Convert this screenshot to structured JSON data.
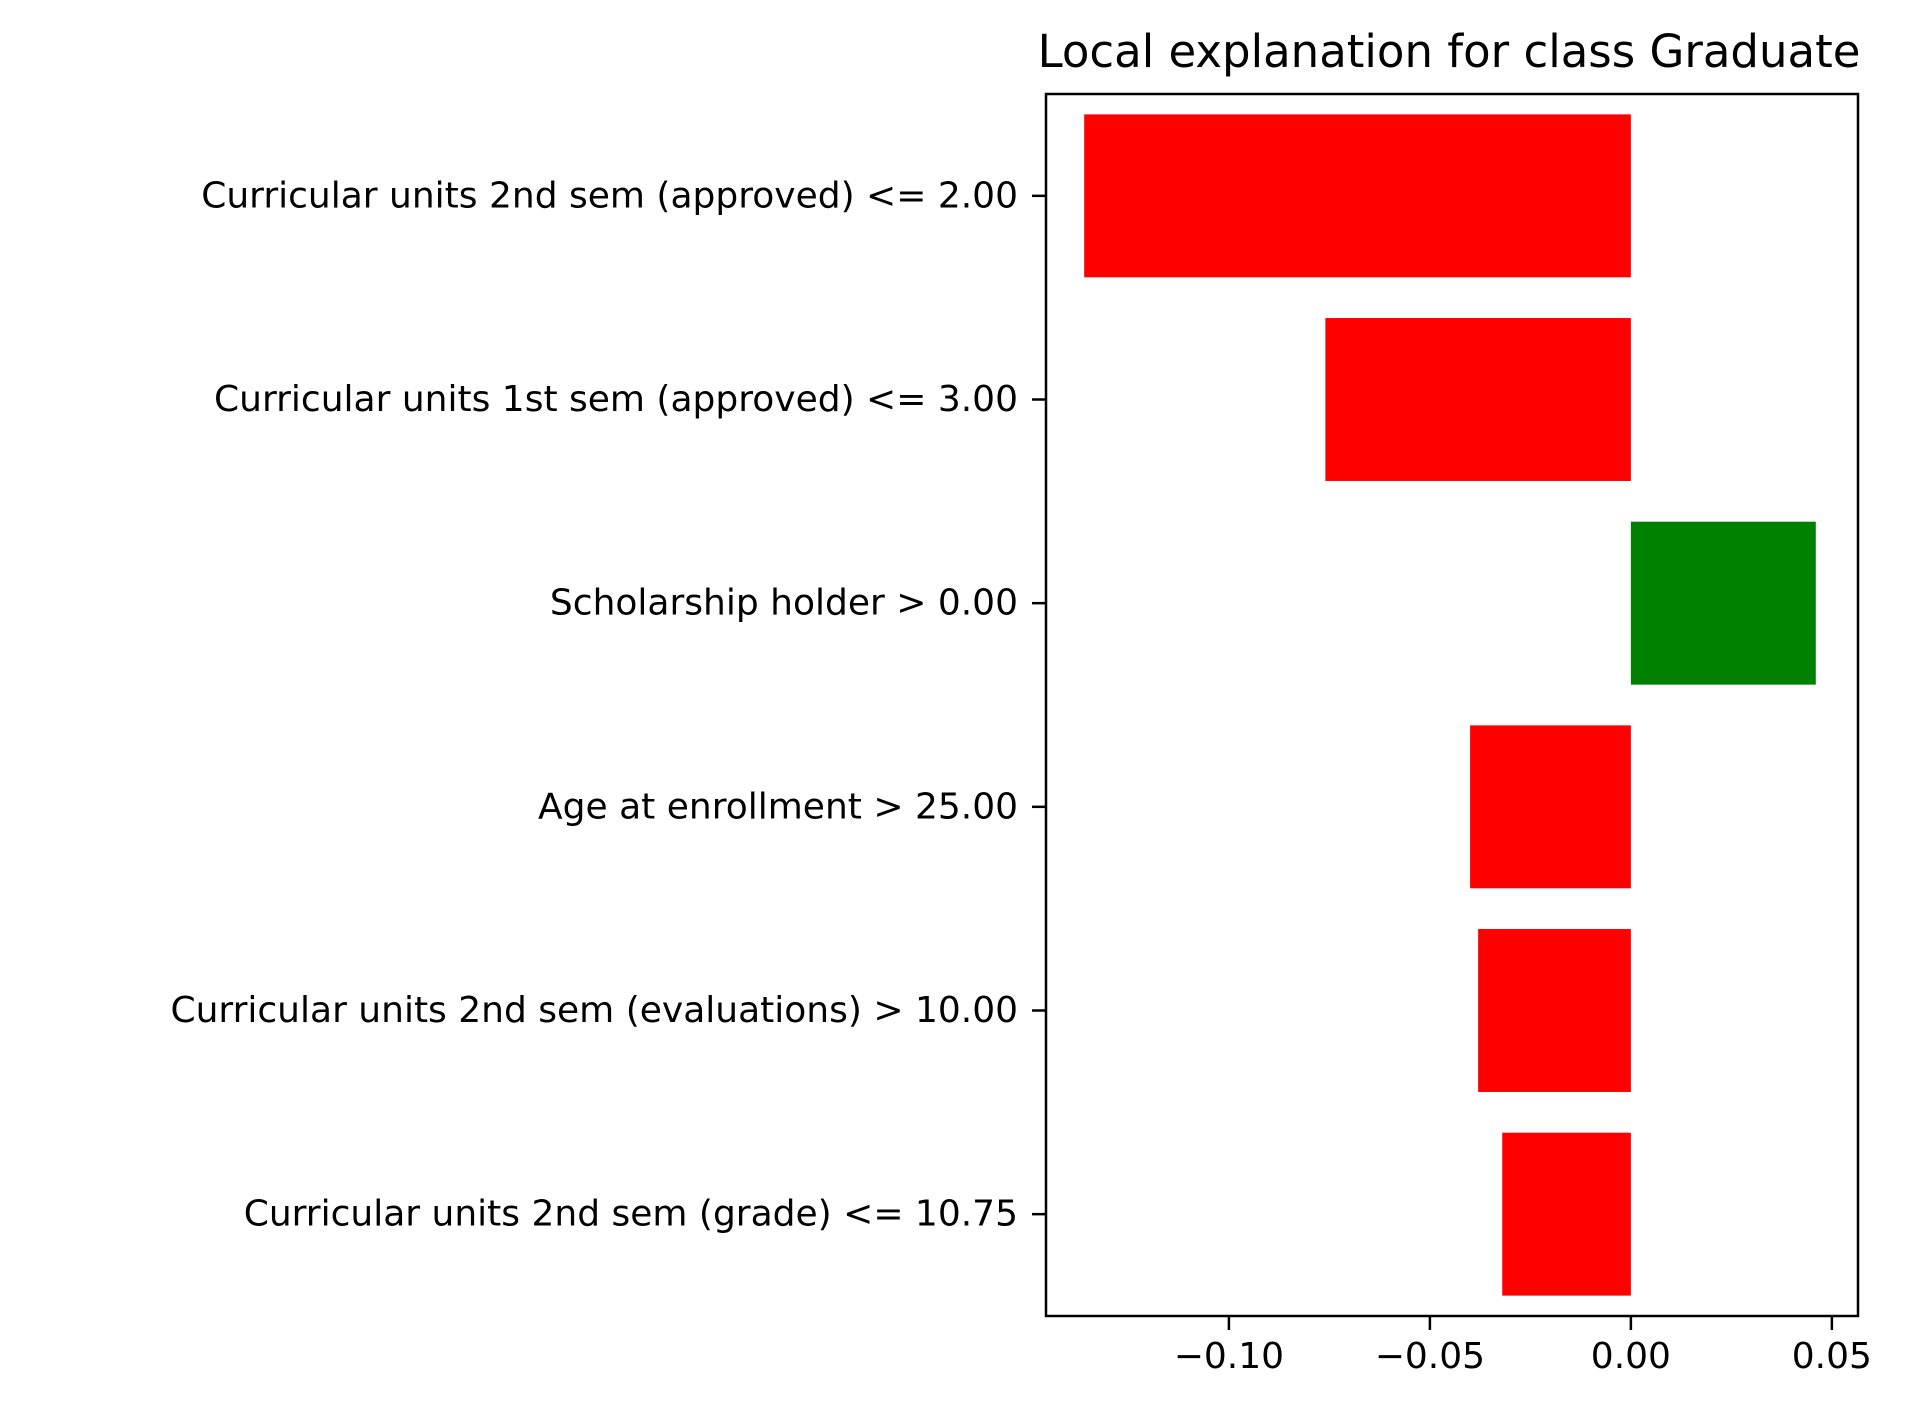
{
  "chart_data": {
    "type": "bar",
    "orientation": "horizontal",
    "title": "Local explanation for class Graduate",
    "xlabel": "",
    "ylabel": "",
    "xlim": [
      -0.1455,
      0.0565
    ],
    "grid": false,
    "categories": [
      "Curricular units 2nd sem (approved) <= 2.00",
      "Curricular units 1st sem (approved) <= 3.00",
      "Scholarship holder > 0.00",
      "Age at enrollment > 25.00",
      "Curricular units 2nd sem (evaluations) > 10.00",
      "Curricular units 2nd sem (grade) <= 10.75"
    ],
    "values": [
      -0.136,
      -0.076,
      0.046,
      -0.04,
      -0.038,
      -0.032
    ],
    "x_ticks": [
      -0.1,
      -0.05,
      0.0,
      0.05
    ],
    "x_tick_labels": [
      "−0.10",
      "−0.05",
      "0.00",
      "0.05"
    ],
    "colors": {
      "positive": "#008000",
      "negative": "#ff0000",
      "axis": "#000000"
    }
  }
}
